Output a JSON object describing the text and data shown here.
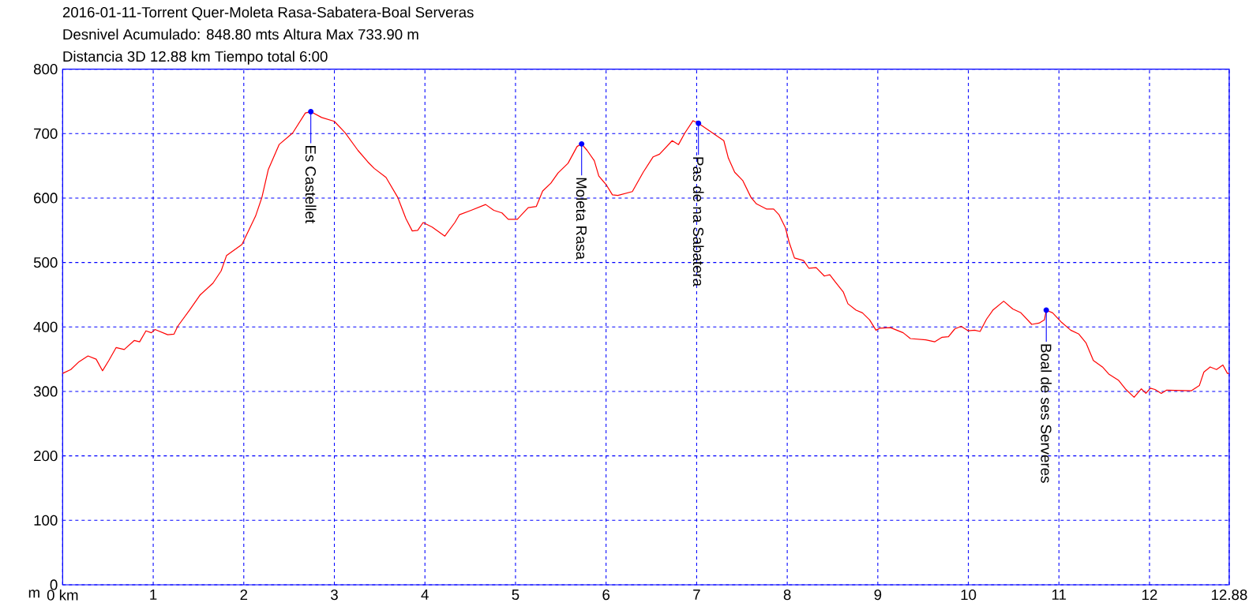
{
  "chart_data": {
    "type": "line",
    "title": "2016-01-11-Torrent Quer-Moleta Rasa-Sabatera-Boal Serveras",
    "subtitle": "Desnivel Acumulado: 848.80 mts  Altura Max 733.90 m",
    "ylabel": "m",
    "annotations": [
      "Distancia 3D 12.88 km  Tiempo total 6:00",
      {
        "text": "Es Castellet",
        "x": 2.74,
        "y": 733.9
      },
      {
        "text": "Moleta Rasa",
        "x": 5.73,
        "y": 684
      },
      {
        "text": "Pas de na Sabatera",
        "x": 7.02,
        "y": 716
      },
      {
        "text": "Boal de ses Serveres",
        "x": 10.86,
        "y": 426
      }
    ],
    "series": [
      {
        "color": "#ff0000",
        "x": [
          0,
          0.09,
          0.18,
          0.28,
          0.37,
          0.44,
          0.51,
          0.59,
          0.68,
          0.79,
          0.85,
          0.92,
          0.98,
          1.02,
          1.16,
          1.23,
          1.27,
          1.4,
          1.52,
          1.66,
          1.75,
          1.81,
          1.98,
          2.13,
          2.2,
          2.27,
          2.39,
          2.54,
          2.68,
          2.74,
          2.86,
          3.0,
          3.12,
          3.26,
          3.37,
          3.44,
          3.57,
          3.7,
          3.79,
          3.86,
          3.92,
          3.98,
          4.08,
          4.22,
          4.33,
          4.38,
          4.51,
          4.67,
          4.76,
          4.85,
          4.92,
          5.02,
          5.14,
          5.23,
          5.3,
          5.39,
          5.47,
          5.58,
          5.68,
          5.73,
          5.79,
          5.87,
          5.92,
          6.0,
          6.07,
          6.13,
          6.29,
          6.41,
          6.52,
          6.59,
          6.73,
          6.8,
          6.87,
          6.96,
          7.02,
          7.3,
          7.35,
          7.42,
          7.51,
          7.6,
          7.66,
          7.77,
          7.85,
          7.91,
          7.98,
          8.02,
          8.08,
          8.18,
          8.24,
          8.32,
          8.41,
          8.47,
          8.53,
          8.62,
          8.67,
          8.76,
          8.83,
          8.91,
          8.98,
          9.02,
          9.14,
          9.28,
          9.36,
          9.53,
          9.63,
          9.71,
          9.78,
          9.85,
          9.92,
          10.0,
          10.07,
          10.13,
          10.2,
          10.27,
          10.39,
          10.49,
          10.58,
          10.7,
          10.78,
          10.84,
          10.86,
          10.93,
          11.03,
          11.13,
          11.22,
          11.3,
          11.38,
          11.48,
          11.55,
          11.66,
          11.74,
          11.83,
          11.91,
          11.96,
          12.01,
          12.06,
          12.13,
          12.19,
          12.46,
          12.55,
          12.6,
          12.67,
          12.74,
          12.81,
          12.86,
          12.88
        ],
        "values": [
          328,
          334,
          346,
          355,
          350,
          332,
          348,
          368,
          365,
          379,
          377,
          394,
          391,
          396,
          388,
          389,
          401,
          426,
          450,
          468,
          487,
          511,
          528,
          572,
          601,
          644,
          683,
          701,
          732,
          733.9,
          725,
          719,
          701,
          674,
          656,
          646,
          632,
          601,
          568,
          549,
          550,
          562,
          555,
          541,
          562,
          574,
          581,
          590,
          581,
          577,
          567,
          567,
          585,
          587,
          611,
          623,
          639,
          654,
          680,
          684,
          674,
          658,
          634,
          621,
          605,
          604,
          610,
          640,
          664,
          668,
          689,
          683,
          701,
          720,
          716,
          689,
          662,
          640,
          627,
          601,
          591,
          583,
          583,
          574,
          554,
          532,
          507,
          503,
          491,
          492,
          479,
          481,
          470,
          454,
          436,
          426,
          422,
          411,
          395,
          398,
          399,
          391,
          382,
          380,
          377,
          384,
          385,
          397,
          401,
          394,
          395,
          393,
          412,
          426,
          440,
          428,
          422,
          404,
          406,
          411,
          426,
          422,
          407,
          395,
          389,
          375,
          348,
          338,
          327,
          317,
          303,
          291,
          304,
          297,
          305,
          303,
          297,
          302,
          301,
          309,
          330,
          338,
          334,
          341,
          328,
          328
        ]
      }
    ],
    "xlim": [
      0,
      12.88
    ],
    "ylim": [
      0,
      800
    ],
    "xticks": [
      {
        "value": 0,
        "label": "0 km"
      },
      1,
      2,
      3,
      4,
      5,
      6,
      7,
      8,
      9,
      10,
      11,
      12,
      12.88
    ],
    "yticks": [
      0,
      100,
      200,
      300,
      400,
      500,
      600,
      700,
      800
    ],
    "grid": true
  }
}
